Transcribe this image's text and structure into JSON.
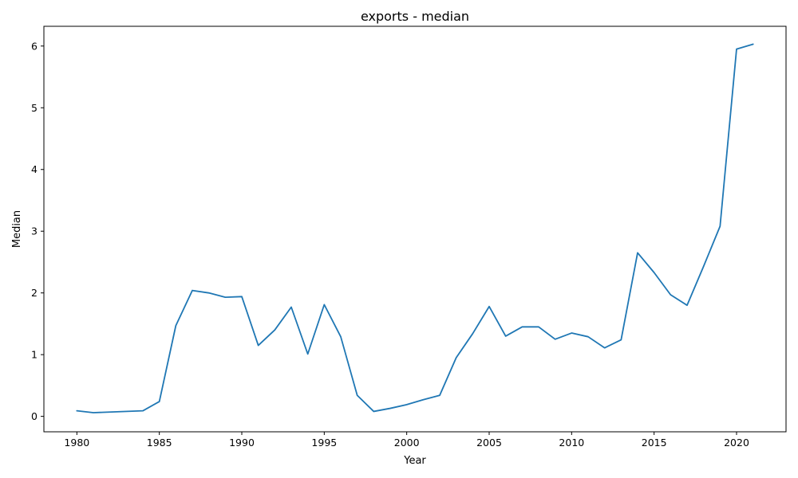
{
  "chart_data": {
    "type": "line",
    "title": "exports - median",
    "xlabel": "Year",
    "ylabel": "Median",
    "xlim": [
      1978,
      2023
    ],
    "ylim": [
      -0.25,
      6.32
    ],
    "xticks": [
      1980,
      1985,
      1990,
      1995,
      2000,
      2005,
      2010,
      2015,
      2020
    ],
    "yticks": [
      0,
      1,
      2,
      3,
      4,
      5,
      6
    ],
    "grid": false,
    "color": "#1f77b4",
    "series": [
      {
        "x": [
          1980,
          1981,
          1984,
          1985,
          1986,
          1987,
          1988,
          1989,
          1990,
          1991,
          1992,
          1993,
          1994,
          1995,
          1996,
          1997,
          1998,
          1999,
          2000,
          2001,
          2002,
          2003,
          2004,
          2005,
          2006,
          2007,
          2008,
          2009,
          2010,
          2011,
          2012,
          2013,
          2014,
          2015,
          2016,
          2017,
          2018,
          2019,
          2020,
          2021
        ],
        "y": [
          0.09,
          0.06,
          0.09,
          0.24,
          1.47,
          2.04,
          2.0,
          1.93,
          1.94,
          1.15,
          1.4,
          1.77,
          1.01,
          1.81,
          1.29,
          0.34,
          0.08,
          0.13,
          0.19,
          0.27,
          0.34,
          0.95,
          1.34,
          1.78,
          1.3,
          1.45,
          1.45,
          1.25,
          1.35,
          1.29,
          1.11,
          1.24,
          2.65,
          2.33,
          1.97,
          1.8,
          2.43,
          3.08,
          5.95,
          6.03
        ]
      }
    ]
  }
}
